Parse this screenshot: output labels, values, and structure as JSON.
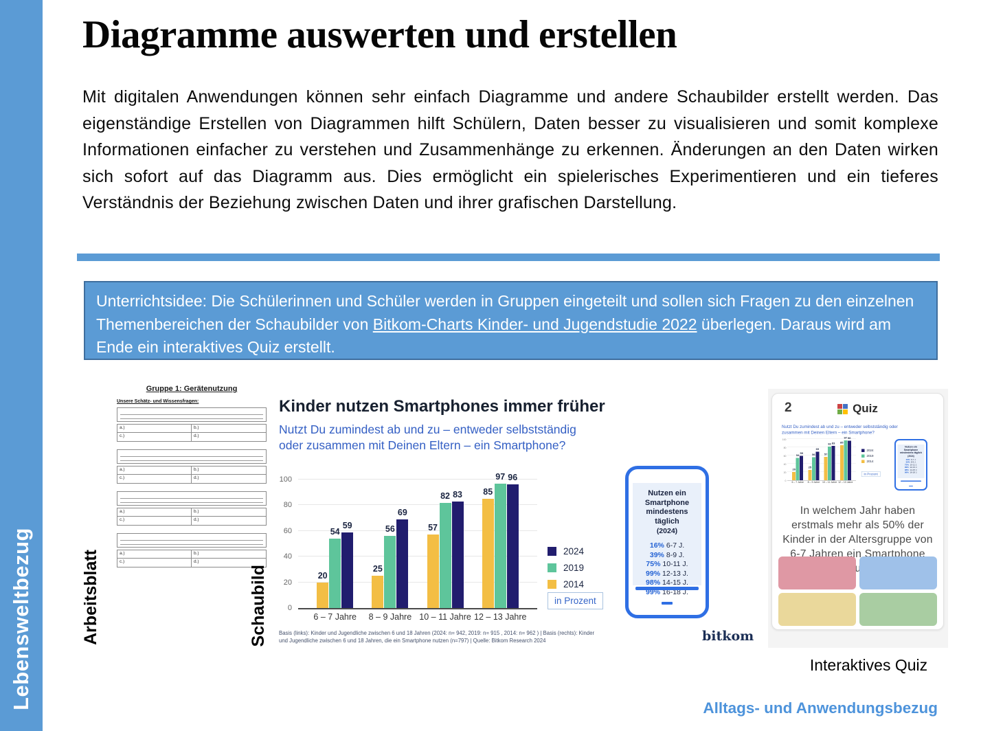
{
  "sidebar": {
    "label": "Lebensweltbezug"
  },
  "page": {
    "title": "Diagramme auswerten und erstellen",
    "intro": "Mit digitalen Anwendungen können sehr einfach Diagramme und andere Schaubilder erstellt werden. Das eigenständige Erstellen von Diagrammen hilft Schülern, Daten besser zu visualisieren und somit komplexe Informationen einfacher zu verstehen und Zusammenhänge zu erkennen. Änderungen an den Daten wirken sich sofort auf das Diagramm aus. Dies ermöglicht ein spielerisches Experimentieren und ein tieferes Verständnis der Beziehung zwischen Daten und ihrer grafischen Darstellung.",
    "idea_box": {
      "text_before": "Unterrichtsidee: Die Schülerinnen und Schüler werden in Gruppen eingeteilt und sollen sich Fragen zu den einzelnen Themenbereichen der Schaubilder von ",
      "link": "Bitkom-Charts Kinder- und Jugendstudie 2022",
      "text_after": " überlegen. Daraus wird am Ende ein interaktives Quiz erstellt."
    },
    "footer_note": "Alltags- und Anwendungsbezug"
  },
  "worksheet": {
    "caption": "Arbeitsblatt",
    "title": "Gruppe 1: Gerätenutzung",
    "subtitle": "Unsere Schätz- und Wissensfragen:",
    "block_count": 4,
    "cells": [
      "a.)",
      "b.)",
      "c.)",
      "d.)"
    ]
  },
  "chart": {
    "caption": "Schaubild",
    "title": "Kinder nutzen Smartphones immer früher",
    "subtitle": "Nutzt Du zumindest ab und zu – entweder selbstständig oder zusammen mit Deinen Eltern – ein Smartphone?",
    "unit_label": "in Prozent",
    "footnote": "Basis (links): Kinder und Jugendliche zwischen 6 und 18 Jahren (2024: n= 942, 2019: n= 915 , 2014: n= 962 ) | Basis (rechts): Kinder und Jugendliche zwischen 6 und 18 Jahren, die ein Smartphone nutzen (n=797) | Quelle: Bitkom Research 2024",
    "source_logo": "bitkom"
  },
  "chart_data": {
    "type": "bar",
    "title": "Kinder nutzen Smartphones immer früher",
    "subtitle": "Nutzt Du zumindest ab und zu – entweder selbstständig oder zusammen mit Deinen Eltern – ein Smartphone?",
    "categories": [
      "6 – 7 Jahre",
      "8 – 9 Jahre",
      "10 – 11 Jahre",
      "12 – 13 Jahre"
    ],
    "series": [
      {
        "name": "2014",
        "color": "#F3BE44",
        "values": [
          20,
          25,
          57,
          85
        ]
      },
      {
        "name": "2019",
        "color": "#5EC59B",
        "values": [
          54,
          56,
          82,
          97
        ]
      },
      {
        "name": "2024",
        "color": "#211D6E",
        "values": [
          59,
          69,
          83,
          96
        ]
      }
    ],
    "legend_order": [
      "2024",
      "2019",
      "2014"
    ],
    "legend_position": "right",
    "grid": true,
    "unit": "in Prozent",
    "ylim": [
      0,
      100
    ],
    "yticks": [
      0,
      20,
      40,
      60,
      80,
      100
    ]
  },
  "phone": {
    "title": "Nutzen ein Smartphone mindestens täglich",
    "year": "(2024)",
    "stats": [
      {
        "pct": "16%",
        "group": "6-7 J."
      },
      {
        "pct": "39%",
        "group": "8-9 J."
      },
      {
        "pct": "75%",
        "group": "10-11 J."
      },
      {
        "pct": "99%",
        "group": "12-13 J."
      },
      {
        "pct": "98%",
        "group": "14-15 J."
      },
      {
        "pct": "99%",
        "group": "16-18 J."
      }
    ]
  },
  "quiz": {
    "caption": "Interaktives Quiz",
    "slide_number": "2",
    "app_title": "Quiz",
    "question": "In welchem Jahr haben erstmals mehr als 50% der Kinder in der Altersgruppe von 6-7 Jahren ein Smartphone genutzt?",
    "answer_colors": [
      "#DF98A4",
      "#9FC1E9",
      "#EAD89B",
      "#A9CDA2"
    ],
    "logo_colors": [
      "#CC4444",
      "#4472C4",
      "#70AD47",
      "#FFC000"
    ]
  },
  "colors": {
    "accent_blue": "#5B9BD5",
    "box_border": "#3F6E9E",
    "subtitle_blue": "#3560C4",
    "phone_blue": "#2F6FE4",
    "stat_blue": "#2563D4",
    "footer_blue": "#4D93DB"
  }
}
